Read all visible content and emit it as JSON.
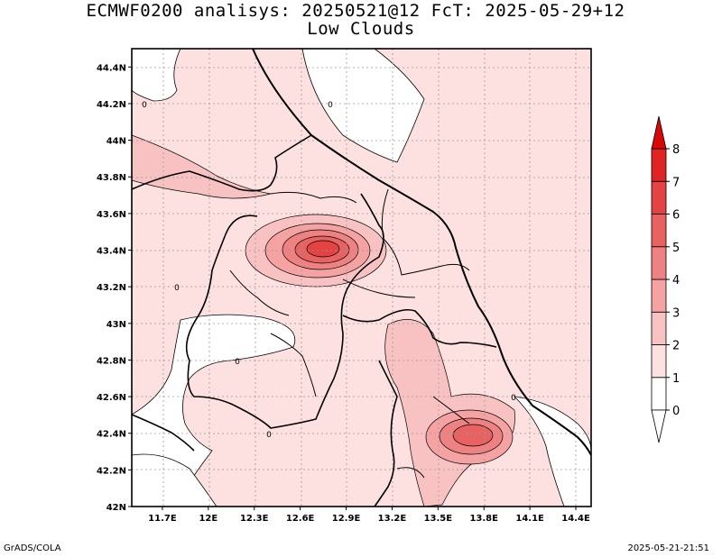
{
  "title_line1": "ECMWF0200 analisys: 20250521@12 FcT: 2025-05-29+12",
  "title_line2": "Low Clouds",
  "footer_left": "GrADS/COLA",
  "footer_right": "2025-05-21-21:51",
  "map": {
    "lon_range": [
      11.5,
      14.5
    ],
    "lat_range": [
      42.0,
      44.5
    ],
    "lon_ticks": [
      "11.7E",
      "12E",
      "12.3E",
      "12.6E",
      "12.9E",
      "13.2E",
      "13.5E",
      "13.8E",
      "14.1E",
      "14.4E"
    ],
    "lat_ticks": [
      "44.4N",
      "44.2N",
      "44N",
      "43.8N",
      "43.6N",
      "43.4N",
      "43.2N",
      "43N",
      "42.8N",
      "42.6N",
      "42.4N",
      "42.2N",
      "42N"
    ],
    "contour_labels": [
      "0",
      "0",
      "0",
      "0",
      "0",
      "0"
    ],
    "grid": "dotted"
  },
  "colorbar": {
    "labels": [
      "0",
      "1",
      "2",
      "3",
      "4",
      "5",
      "6",
      "7",
      "8"
    ],
    "colors": [
      "#ffffff",
      "#fde0e0",
      "#f9c2c2",
      "#f4a2a2",
      "#ee8282",
      "#e86262",
      "#e44343",
      "#e02424",
      "#d80808"
    ]
  }
}
